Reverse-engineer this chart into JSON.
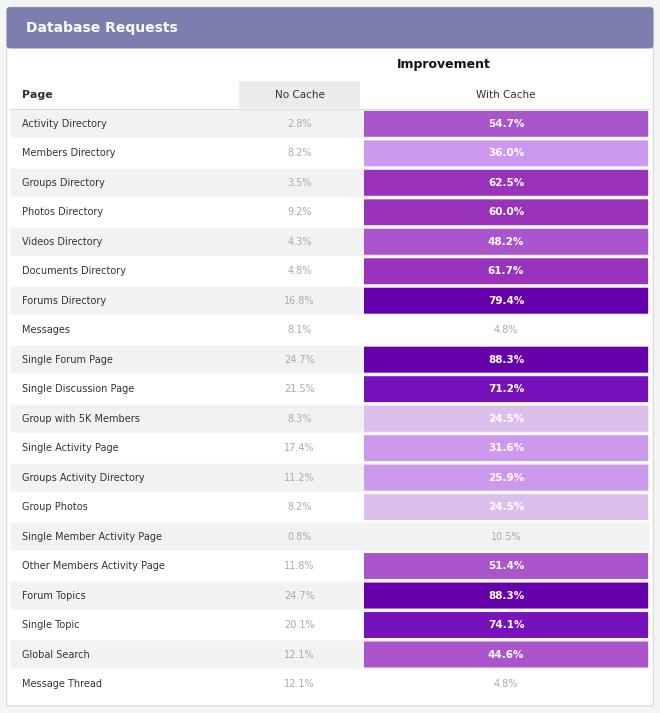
{
  "title": "Database Requests",
  "subtitle": "Improvement",
  "col_page": "Page",
  "col_no_cache": "No Cache",
  "col_with_cache": "With Cache",
  "rows": [
    {
      "page": "Activity Directory",
      "no_cache": "2.8%",
      "with_cache": "54.7%",
      "cache_val": 54.7,
      "has_bar": true,
      "shaded": true
    },
    {
      "page": "Members Directory",
      "no_cache": "8.2%",
      "with_cache": "36.0%",
      "cache_val": 36.0,
      "has_bar": true,
      "shaded": false
    },
    {
      "page": "Groups Directory",
      "no_cache": "3.5%",
      "with_cache": "62.5%",
      "cache_val": 62.5,
      "has_bar": true,
      "shaded": true
    },
    {
      "page": "Photos Directory",
      "no_cache": "9.2%",
      "with_cache": "60.0%",
      "cache_val": 60.0,
      "has_bar": true,
      "shaded": false
    },
    {
      "page": "Videos Directory",
      "no_cache": "4.3%",
      "with_cache": "48.2%",
      "cache_val": 48.2,
      "has_bar": true,
      "shaded": true
    },
    {
      "page": "Documents Directory",
      "no_cache": "4.8%",
      "with_cache": "61.7%",
      "cache_val": 61.7,
      "has_bar": true,
      "shaded": false
    },
    {
      "page": "Forums Directory",
      "no_cache": "16.8%",
      "with_cache": "79.4%",
      "cache_val": 79.4,
      "has_bar": true,
      "shaded": true
    },
    {
      "page": "Messages",
      "no_cache": "8.1%",
      "with_cache": "4.8%",
      "cache_val": null,
      "has_bar": false,
      "shaded": false
    },
    {
      "page": "Single Forum Page",
      "no_cache": "24.7%",
      "with_cache": "88.3%",
      "cache_val": 88.3,
      "has_bar": true,
      "shaded": true
    },
    {
      "page": "Single Discussion Page",
      "no_cache": "21.5%",
      "with_cache": "71.2%",
      "cache_val": 71.2,
      "has_bar": true,
      "shaded": false
    },
    {
      "page": "Group with 5K Members",
      "no_cache": "8.3%",
      "with_cache": "24.5%",
      "cache_val": 24.5,
      "has_bar": true,
      "shaded": true
    },
    {
      "page": "Single Activity Page",
      "no_cache": "17.4%",
      "with_cache": "31.6%",
      "cache_val": 31.6,
      "has_bar": true,
      "shaded": false
    },
    {
      "page": "Groups Activity Directory",
      "no_cache": "11.2%",
      "with_cache": "25.9%",
      "cache_val": 25.9,
      "has_bar": true,
      "shaded": true
    },
    {
      "page": "Group Photos",
      "no_cache": "8.2%",
      "with_cache": "24.5%",
      "cache_val": 24.5,
      "has_bar": true,
      "shaded": false
    },
    {
      "page": "Single Member Activity Page",
      "no_cache": "0.8%",
      "with_cache": "10.5%",
      "cache_val": null,
      "has_bar": false,
      "shaded": true
    },
    {
      "page": "Other Members Activity Page",
      "no_cache": "11.8%",
      "with_cache": "51.4%",
      "cache_val": 51.4,
      "has_bar": true,
      "shaded": false
    },
    {
      "page": "Forum Topics",
      "no_cache": "24.7%",
      "with_cache": "88.3%",
      "cache_val": 88.3,
      "has_bar": true,
      "shaded": true
    },
    {
      "page": "Single Topic",
      "no_cache": "20.1%",
      "with_cache": "74.1%",
      "cache_val": 74.1,
      "has_bar": true,
      "shaded": false
    },
    {
      "page": "Global Search",
      "no_cache": "12.1%",
      "with_cache": "44.6%",
      "cache_val": 44.6,
      "has_bar": true,
      "shaded": true
    },
    {
      "page": "Message Thread",
      "no_cache": "12.1%",
      "with_cache": "4.8%",
      "cache_val": null,
      "has_bar": false,
      "shaded": false
    }
  ],
  "header_bg": "#7b7fad",
  "header_text": "#ffffff",
  "row_shaded_bg": "#f2f2f2",
  "row_white_bg": "#ffffff",
  "no_cache_text_color": "#aaaaaa",
  "page_text_color": "#333333",
  "subtitle_color": "#111111",
  "col_header_text": "#333333",
  "no_cache_col_bg": "#ebebeb",
  "card_border": "#dddddd",
  "background": "#f5f5f5",
  "bar_colors": {
    "dark": "#6600aa",
    "medium_dark": "#7711bb",
    "medium": "#9933bb",
    "medium_light": "#aa55cc",
    "light": "#cc99ee",
    "very_light": "#ddbfee"
  },
  "bar_color_map": [
    [
      79.0,
      "dark"
    ],
    [
      65.0,
      "medium_dark"
    ],
    [
      55.0,
      "medium"
    ],
    [
      40.0,
      "medium_light"
    ],
    [
      25.0,
      "light"
    ],
    [
      0.0,
      "very_light"
    ]
  ]
}
